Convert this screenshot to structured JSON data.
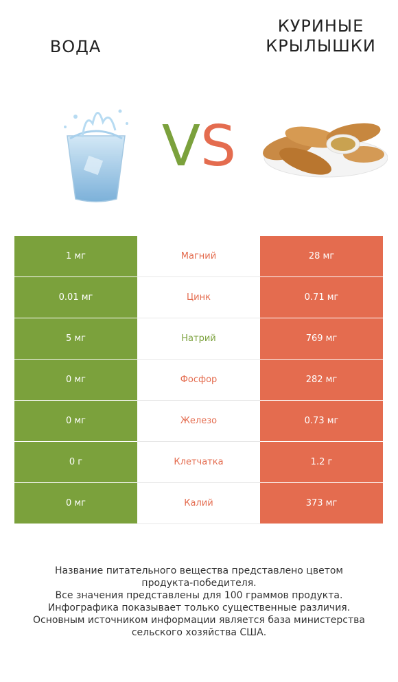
{
  "header": {
    "left_title": "ВОДА",
    "right_title_line1": "КУРИНЫЕ",
    "right_title_line2": "КРЫЛЫШКИ",
    "vs_v": "V",
    "vs_s": "S"
  },
  "colors": {
    "left": "#7ba13c",
    "right": "#e46c4f"
  },
  "rows": [
    {
      "left": "1 мг",
      "name": "Магний",
      "right": "28 мг",
      "winner": "right"
    },
    {
      "left": "0.01 мг",
      "name": "Цинк",
      "right": "0.71 мг",
      "winner": "right"
    },
    {
      "left": "5 мг",
      "name": "Натрий",
      "right": "769 мг",
      "winner": "left"
    },
    {
      "left": "0 мг",
      "name": "Фосфор",
      "right": "282 мг",
      "winner": "right"
    },
    {
      "left": "0 мг",
      "name": "Железо",
      "right": "0.73 мг",
      "winner": "right"
    },
    {
      "left": "0 г",
      "name": "Клетчатка",
      "right": "1.2 г",
      "winner": "right"
    },
    {
      "left": "0 мг",
      "name": "Калий",
      "right": "373 мг",
      "winner": "right"
    }
  ],
  "footer": [
    "Название питательного вещества представлено цветом",
    "продукта-победителя.",
    "Все значения представлены для 100 граммов продукта.",
    "Инфографика показывает только существенные различия.",
    "Основным источником информации является база министерства",
    "сельского хозяйства США."
  ]
}
